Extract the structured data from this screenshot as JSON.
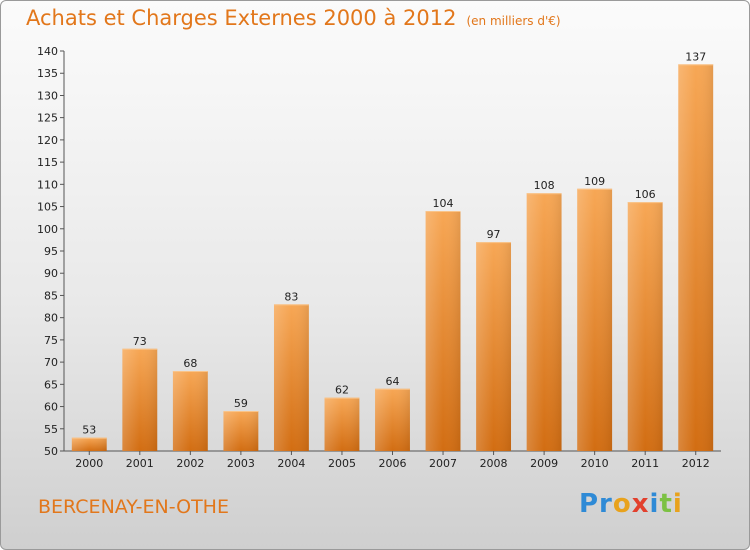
{
  "title": "Achats et Charges Externes 2000 à 2012",
  "unit": "(en milliers d'€)",
  "commune": "BERCENAY-EN-OTHE",
  "logo": {
    "p": "Pr",
    "o": "o",
    "x": "x",
    "i": "i",
    "t": "t",
    "i2": "i"
  },
  "colors": {
    "bar_light": "#f6a654",
    "bar_dark": "#d36f14",
    "title": "#e2771b"
  },
  "chart_data": {
    "type": "bar",
    "categories": [
      "2000",
      "2001",
      "2002",
      "2003",
      "2004",
      "2005",
      "2006",
      "2007",
      "2008",
      "2009",
      "2010",
      "2011",
      "2012"
    ],
    "values": [
      53,
      73,
      68,
      59,
      83,
      62,
      64,
      104,
      97,
      108,
      109,
      106,
      137
    ],
    "ylim": [
      50,
      140
    ],
    "yticks": [
      50,
      55,
      60,
      65,
      70,
      75,
      80,
      85,
      90,
      95,
      100,
      105,
      110,
      115,
      120,
      125,
      130,
      135,
      140
    ],
    "grid": false,
    "xlabel": "",
    "ylabel": ""
  }
}
